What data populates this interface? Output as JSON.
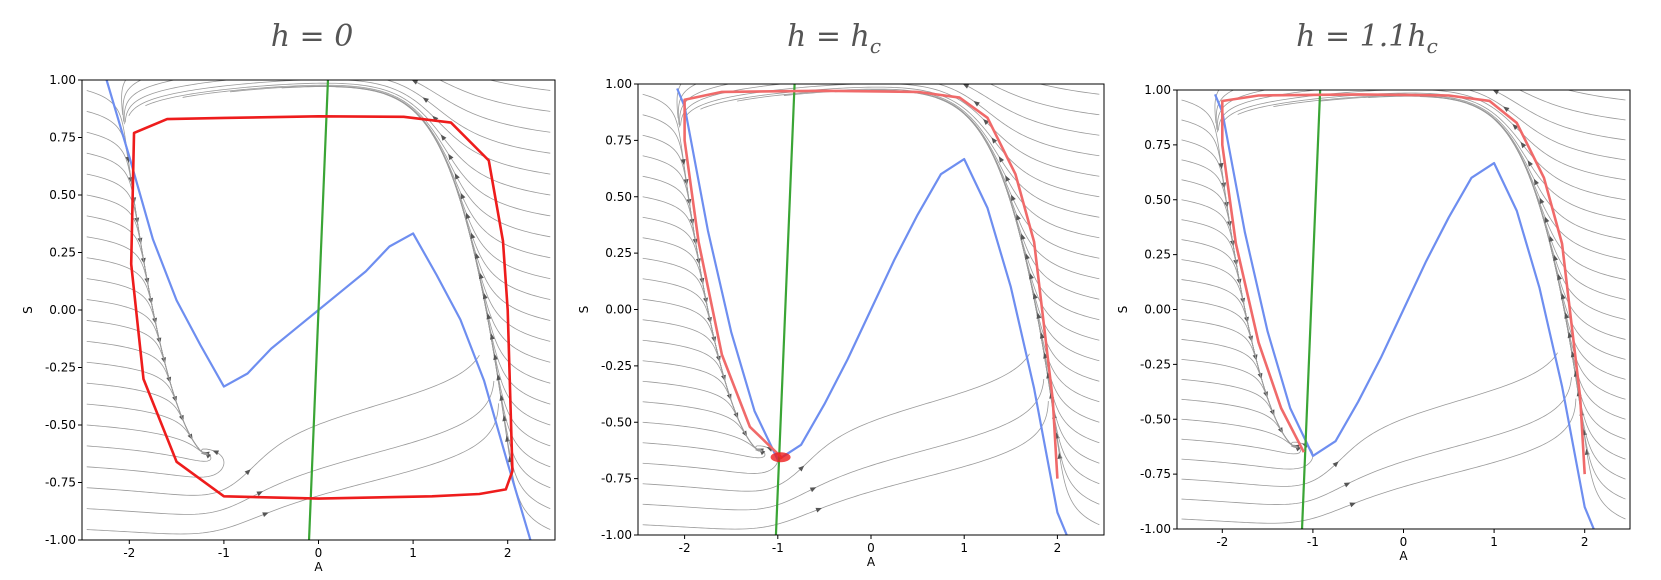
{
  "colors": {
    "stream": "#9a9a9a",
    "nullcline_A": "#6e8ef0",
    "nullcline_S": "#3aa535",
    "trajectory": "#ee1c1c",
    "trajectory_soft": "#f06a6a"
  },
  "chart_data": [
    {
      "type": "line",
      "title": "h = 0",
      "xlabel": "A",
      "ylabel": "S",
      "xlim": [
        -2.5,
        2.5
      ],
      "ylim": [
        -1.0,
        1.0
      ],
      "xticks": [
        "-2",
        "-1",
        "0",
        "1",
        "2"
      ],
      "yticks": [
        "1.00",
        "0.75",
        "0.50",
        "0.25",
        "0.00",
        "-0.25",
        "-0.50",
        "-0.75",
        "-1.00"
      ],
      "background": "streamlines",
      "series": [
        {
          "role": "A-nullcline",
          "color": "nullcline_A",
          "x": [
            -2.24,
            -2.0,
            -1.75,
            -1.5,
            -1.25,
            -1.0,
            -0.75,
            -0.5,
            -0.25,
            0,
            0.25,
            0.5,
            0.75,
            1.0,
            1.25,
            1.5,
            1.75,
            2.0,
            2.24
          ],
          "y": [
            1.0,
            0.667,
            0.307,
            0.042,
            -0.151,
            -0.333,
            -0.276,
            -0.168,
            -0.084,
            0,
            0.084,
            0.168,
            0.276,
            0.333,
            0.151,
            -0.042,
            -0.307,
            -0.667,
            -1.0
          ]
        },
        {
          "role": "S-nullcline",
          "color": "nullcline_S",
          "x": [
            -0.1,
            0.1
          ],
          "y": [
            -1.0,
            1.0
          ]
        },
        {
          "role": "limit-cycle",
          "color": "trajectory",
          "closed": true,
          "x": [
            -1.95,
            -1.6,
            -1.0,
            0.0,
            0.9,
            1.4,
            1.8,
            1.95,
            2.0,
            2.05,
            1.98,
            1.7,
            1.2,
            0.0,
            -1.0,
            -1.5,
            -1.85,
            -1.98,
            -1.95
          ],
          "y": [
            0.77,
            0.83,
            0.835,
            0.842,
            0.84,
            0.815,
            0.65,
            0.3,
            0.0,
            -0.7,
            -0.78,
            -0.8,
            -0.81,
            -0.82,
            -0.81,
            -0.66,
            -0.3,
            0.2,
            0.77
          ]
        }
      ]
    },
    {
      "type": "line",
      "title": "h = h_c",
      "xlabel": "A",
      "ylabel": "S",
      "xlim": [
        -2.5,
        2.5
      ],
      "ylim": [
        -1.0,
        1.0
      ],
      "xticks": [
        "-2",
        "-1",
        "0",
        "1",
        "2"
      ],
      "yticks": [
        "1.00",
        "0.75",
        "0.50",
        "0.25",
        "0.00",
        "-0.25",
        "-0.50",
        "-0.75",
        "-1.00"
      ],
      "background": "streamlines",
      "series": [
        {
          "role": "A-nullcline",
          "color": "nullcline_A",
          "x": [
            -2.08,
            -2.0,
            -1.75,
            -1.5,
            -1.25,
            -1.0,
            -0.75,
            -0.5,
            -0.25,
            0,
            0.25,
            0.5,
            0.75,
            1.0,
            1.25,
            1.5,
            1.75,
            2.0,
            2.1
          ],
          "y": [
            0.98,
            0.9,
            0.35,
            -0.1,
            -0.45,
            -0.667,
            -0.6,
            -0.42,
            -0.22,
            0,
            0.22,
            0.42,
            0.6,
            0.667,
            0.45,
            0.1,
            -0.35,
            -0.9,
            -1.0
          ]
        },
        {
          "role": "S-nullcline",
          "color": "nullcline_S",
          "x": [
            -1.02,
            -0.82
          ],
          "y": [
            -1.0,
            1.0
          ]
        },
        {
          "role": "homoclinic-orbit",
          "color": "trajectory_soft",
          "closed": false,
          "x": [
            -0.95,
            -1.3,
            -1.6,
            -1.85,
            -2.0,
            -2.0,
            -1.6,
            -0.5,
            0.5,
            0.95,
            1.25,
            1.55,
            1.75,
            1.85,
            1.95,
            2.0
          ],
          "y": [
            -0.66,
            -0.52,
            -0.2,
            0.3,
            0.75,
            0.93,
            0.965,
            0.97,
            0.965,
            0.94,
            0.85,
            0.6,
            0.3,
            -0.05,
            -0.4,
            -0.75
          ]
        }
      ],
      "markers": [
        {
          "x": -0.97,
          "y": -0.655,
          "color": "trajectory",
          "shape": "ellipse"
        }
      ]
    },
    {
      "type": "line",
      "title": "h = 1.1h_c",
      "xlabel": "A",
      "ylabel": "S",
      "xlim": [
        -2.5,
        2.5
      ],
      "ylim": [
        -1.0,
        1.0
      ],
      "xticks": [
        "-2",
        "-1",
        "0",
        "1",
        "2"
      ],
      "yticks": [
        "1.00",
        "0.75",
        "0.50",
        "0.25",
        "0.00",
        "-0.25",
        "-0.50",
        "-0.75",
        "-1.00"
      ],
      "background": "streamlines",
      "series": [
        {
          "role": "A-nullcline",
          "color": "nullcline_A",
          "x": [
            -2.08,
            -2.0,
            -1.75,
            -1.5,
            -1.25,
            -1.0,
            -0.75,
            -0.5,
            -0.25,
            0,
            0.25,
            0.5,
            0.75,
            1.0,
            1.25,
            1.5,
            1.75,
            2.0,
            2.1
          ],
          "y": [
            0.98,
            0.9,
            0.35,
            -0.1,
            -0.45,
            -0.667,
            -0.6,
            -0.42,
            -0.22,
            0,
            0.22,
            0.42,
            0.6,
            0.667,
            0.45,
            0.1,
            -0.35,
            -0.9,
            -1.0
          ]
        },
        {
          "role": "S-nullcline",
          "color": "nullcline_S",
          "x": [
            -1.12,
            -0.92
          ],
          "y": [
            -1.0,
            1.0
          ]
        },
        {
          "role": "trajectory",
          "color": "trajectory_soft",
          "closed": false,
          "x": [
            -1.1,
            -1.35,
            -1.6,
            -1.85,
            -2.0,
            -2.0,
            -1.6,
            -0.5,
            0.5,
            0.95,
            1.25,
            1.55,
            1.75,
            1.85,
            1.95,
            2.0
          ],
          "y": [
            -0.65,
            -0.45,
            -0.15,
            0.3,
            0.75,
            0.95,
            0.975,
            0.98,
            0.975,
            0.95,
            0.85,
            0.6,
            0.3,
            -0.05,
            -0.4,
            -0.75
          ]
        }
      ]
    }
  ]
}
